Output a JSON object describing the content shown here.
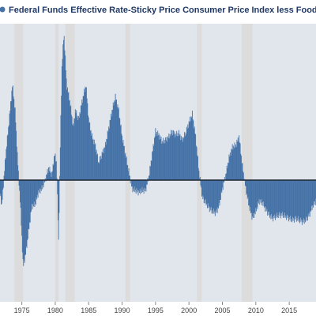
{
  "header": {
    "title": "Federal Funds Effective Rate-Sticky Price Consumer Price Index less Food and Energy"
  },
  "colors": {
    "background": "#ffffff",
    "plot_background": "#e1e5ec",
    "recession_band": "#dcdcdc",
    "bar": "#4572a7",
    "zero_line": "#1c2430",
    "title": "#1f3864",
    "legend_marker": "#4572a7"
  },
  "chart_data": {
    "type": "bar",
    "title": "Federal Funds Effective Rate-Sticky Price Consumer Price Index less Food and Energy",
    "xlabel": "",
    "ylabel": "",
    "x_start": 1971.5,
    "x_end": 2019.0,
    "xlim": [
      1971.5,
      2019.0
    ],
    "ylim": [
      -7.0,
      9.0
    ],
    "grid": false,
    "legend": "top-left",
    "x_ticks": [
      1975,
      1980,
      1985,
      1990,
      1995,
      2000,
      2005,
      2010,
      2015
    ],
    "x_tick_labels": [
      "1975",
      "1980",
      "1985",
      "1990",
      "1995",
      "2000",
      "2005",
      "2010",
      "2015"
    ],
    "recession_shading": [
      {
        "start": 1973.9,
        "end": 1975.2
      },
      {
        "start": 1980.0,
        "end": 1980.5
      },
      {
        "start": 1981.5,
        "end": 1982.9
      },
      {
        "start": 1990.5,
        "end": 1991.2
      },
      {
        "start": 2001.2,
        "end": 2001.9
      },
      {
        "start": 2007.9,
        "end": 2009.5
      }
    ],
    "series_points": [
      {
        "x": 1971.5,
        "y": 0.1
      },
      {
        "x": 1972.0,
        "y": -1.5
      },
      {
        "x": 1972.6,
        "y": 1.5
      },
      {
        "x": 1973.0,
        "y": 3.0
      },
      {
        "x": 1973.6,
        "y": 5.5
      },
      {
        "x": 1974.0,
        "y": 4.0
      },
      {
        "x": 1974.4,
        "y": 1.0
      },
      {
        "x": 1974.8,
        "y": -1.5
      },
      {
        "x": 1975.2,
        "y": -5.0
      },
      {
        "x": 1975.6,
        "y": -4.2
      },
      {
        "x": 1976.0,
        "y": -3.0
      },
      {
        "x": 1976.5,
        "y": -1.5
      },
      {
        "x": 1977.0,
        "y": -1.4
      },
      {
        "x": 1977.5,
        "y": -0.7
      },
      {
        "x": 1978.0,
        "y": -0.5
      },
      {
        "x": 1978.5,
        "y": 0.0
      },
      {
        "x": 1979.0,
        "y": 0.7
      },
      {
        "x": 1979.5,
        "y": 0.3
      },
      {
        "x": 1979.9,
        "y": 1.5
      },
      {
        "x": 1980.2,
        "y": 1.0
      },
      {
        "x": 1980.5,
        "y": -3.5
      },
      {
        "x": 1980.8,
        "y": 3.0
      },
      {
        "x": 1981.0,
        "y": 6.5
      },
      {
        "x": 1981.3,
        "y": 8.5
      },
      {
        "x": 1981.7,
        "y": 5.5
      },
      {
        "x": 1982.2,
        "y": 4.5
      },
      {
        "x": 1982.7,
        "y": 3.0
      },
      {
        "x": 1983.0,
        "y": 4.0
      },
      {
        "x": 1983.5,
        "y": 3.5
      },
      {
        "x": 1984.0,
        "y": 4.5
      },
      {
        "x": 1984.6,
        "y": 5.5
      },
      {
        "x": 1985.0,
        "y": 3.5
      },
      {
        "x": 1985.5,
        "y": 2.5
      },
      {
        "x": 1986.0,
        "y": 2.0
      },
      {
        "x": 1986.5,
        "y": 1.0
      },
      {
        "x": 1987.0,
        "y": 1.5
      },
      {
        "x": 1987.5,
        "y": 2.0
      },
      {
        "x": 1988.0,
        "y": 3.0
      },
      {
        "x": 1988.5,
        "y": 4.0
      },
      {
        "x": 1989.0,
        "y": 4.8
      },
      {
        "x": 1989.5,
        "y": 4.0
      },
      {
        "x": 1990.0,
        "y": 2.5
      },
      {
        "x": 1990.5,
        "y": 1.5
      },
      {
        "x": 1991.0,
        "y": 0.5
      },
      {
        "x": 1991.5,
        "y": -0.5
      },
      {
        "x": 1992.0,
        "y": -0.6
      },
      {
        "x": 1992.5,
        "y": -0.7
      },
      {
        "x": 1993.0,
        "y": -0.6
      },
      {
        "x": 1993.5,
        "y": -0.6
      },
      {
        "x": 1994.0,
        "y": 0.2
      },
      {
        "x": 1994.5,
        "y": 1.5
      },
      {
        "x": 1995.0,
        "y": 2.8
      },
      {
        "x": 1995.5,
        "y": 2.6
      },
      {
        "x": 1996.0,
        "y": 2.2
      },
      {
        "x": 1996.5,
        "y": 2.3
      },
      {
        "x": 1997.0,
        "y": 2.5
      },
      {
        "x": 1997.5,
        "y": 2.8
      },
      {
        "x": 1998.0,
        "y": 2.6
      },
      {
        "x": 1998.5,
        "y": 2.7
      },
      {
        "x": 1999.0,
        "y": 2.3
      },
      {
        "x": 1999.5,
        "y": 2.7
      },
      {
        "x": 2000.0,
        "y": 3.3
      },
      {
        "x": 2000.5,
        "y": 3.8
      },
      {
        "x": 2001.0,
        "y": 2.5
      },
      {
        "x": 2001.5,
        "y": 0.5
      },
      {
        "x": 2002.0,
        "y": -1.0
      },
      {
        "x": 2002.5,
        "y": -1.3
      },
      {
        "x": 2003.0,
        "y": -1.6
      },
      {
        "x": 2003.5,
        "y": -1.8
      },
      {
        "x": 2004.0,
        "y": -1.9
      },
      {
        "x": 2004.5,
        "y": -1.5
      },
      {
        "x": 2005.0,
        "y": -0.5
      },
      {
        "x": 2005.5,
        "y": 0.3
      },
      {
        "x": 2006.0,
        "y": 1.3
      },
      {
        "x": 2006.5,
        "y": 1.9
      },
      {
        "x": 2007.0,
        "y": 2.0
      },
      {
        "x": 2007.5,
        "y": 2.5
      },
      {
        "x": 2008.0,
        "y": 0.8
      },
      {
        "x": 2008.5,
        "y": -0.5
      },
      {
        "x": 2009.0,
        "y": -1.5
      },
      {
        "x": 2009.5,
        "y": -2.2
      },
      {
        "x": 2010.0,
        "y": -1.8
      },
      {
        "x": 2010.5,
        "y": -1.2
      },
      {
        "x": 2011.0,
        "y": -1.3
      },
      {
        "x": 2011.5,
        "y": -1.7
      },
      {
        "x": 2012.0,
        "y": -2.0
      },
      {
        "x": 2012.5,
        "y": -2.2
      },
      {
        "x": 2013.0,
        "y": -2.1
      },
      {
        "x": 2013.5,
        "y": -2.0
      },
      {
        "x": 2014.0,
        "y": -2.0
      },
      {
        "x": 2014.5,
        "y": -2.1
      },
      {
        "x": 2015.0,
        "y": -2.2
      },
      {
        "x": 2015.5,
        "y": -2.3
      },
      {
        "x": 2016.0,
        "y": -2.2
      },
      {
        "x": 2016.5,
        "y": -2.3
      },
      {
        "x": 2017.0,
        "y": -2.4
      },
      {
        "x": 2017.5,
        "y": -2.3
      },
      {
        "x": 2018.0,
        "y": -2.0
      },
      {
        "x": 2018.5,
        "y": -1.5
      },
      {
        "x": 2019.0,
        "y": -1.2
      }
    ]
  }
}
